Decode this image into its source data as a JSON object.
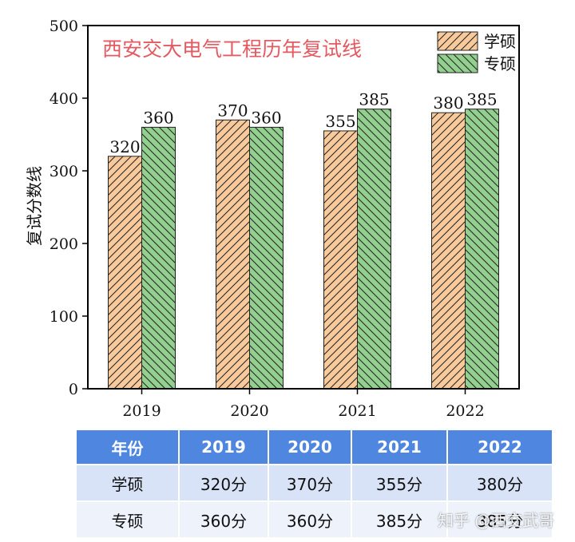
{
  "chart_data": {
    "type": "bar",
    "title": "西安交大电气工程历年复试线",
    "ylabel": "复试分数线",
    "xlabel": "",
    "ylim": [
      0,
      500
    ],
    "yticks": [
      0,
      100,
      200,
      300,
      400,
      500
    ],
    "categories": [
      "2019",
      "2020",
      "2021",
      "2022"
    ],
    "series": [
      {
        "name": "学硕",
        "values": [
          320,
          370,
          355,
          380
        ],
        "color": "#f8c99b",
        "hatch": "diagonal"
      },
      {
        "name": "专硕",
        "values": [
          360,
          360,
          385,
          385
        ],
        "color": "#93cf8e",
        "hatch": "diagonal-reverse"
      }
    ],
    "legend_position": "top-right",
    "grid": false,
    "data_labels": true
  },
  "table": {
    "headers": [
      "年份",
      "2019",
      "2020",
      "2021",
      "2022"
    ],
    "rows": [
      [
        "学硕",
        "320分",
        "370分",
        "355分",
        "380分"
      ],
      [
        "专硕",
        "360分",
        "360分",
        "385分",
        "385分"
      ]
    ],
    "header_color": "#4f86e0"
  },
  "watermark": "知乎 @西交武哥"
}
